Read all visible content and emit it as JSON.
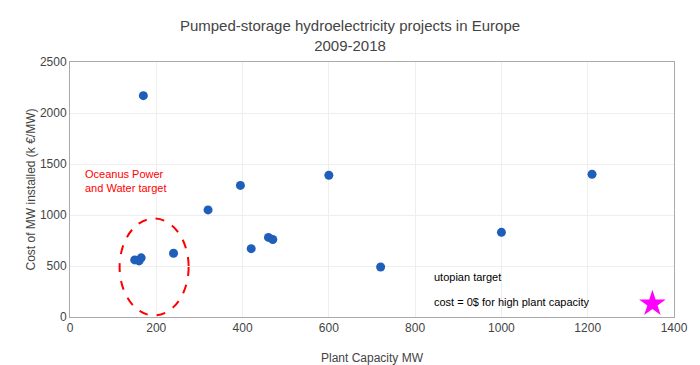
{
  "chart_data": {
    "type": "scatter",
    "title": "Pumped-storage hydroelectricity projects in Europe",
    "subtitle": "2009-2018",
    "x_label": "Plant Capacity MW",
    "y_label": "Cost of MW installed (k €/MW)",
    "xlim": [
      0,
      1400
    ],
    "ylim": [
      0,
      2500
    ],
    "xticks": [
      0,
      200,
      400,
      600,
      800,
      1000,
      1200,
      1400
    ],
    "yticks": [
      0,
      500,
      1000,
      1500,
      2000,
      2500
    ],
    "grid": true,
    "series": [
      {
        "marker": "circle",
        "color": "#1f5fba",
        "x": [
          150,
          160,
          165,
          170,
          240,
          320,
          395,
          420,
          460,
          470,
          600,
          720,
          1000,
          1210
        ],
        "values": [
          560,
          550,
          580,
          2170,
          625,
          1050,
          1290,
          670,
          780,
          760,
          1390,
          490,
          830,
          1400
        ]
      },
      {
        "marker": "star",
        "color": "#ff00ff",
        "x": [
          1350
        ],
        "values": [
          130
        ]
      }
    ],
    "ellipse": {
      "cx": 195,
      "cy": 490,
      "width": 160,
      "height": 950,
      "color": "red",
      "line_style": "dashed"
    },
    "annotations": [
      {
        "text": "Oceanus Power\nand Water target",
        "x": 30,
        "y": 1480,
        "color": "red"
      },
      {
        "text": "utopian target",
        "x": 840,
        "y": 310,
        "color": "#000000"
      },
      {
        "text": "cost = 0$ for high plant capacity",
        "x": 840,
        "y": 230,
        "color": "#000000"
      }
    ]
  }
}
